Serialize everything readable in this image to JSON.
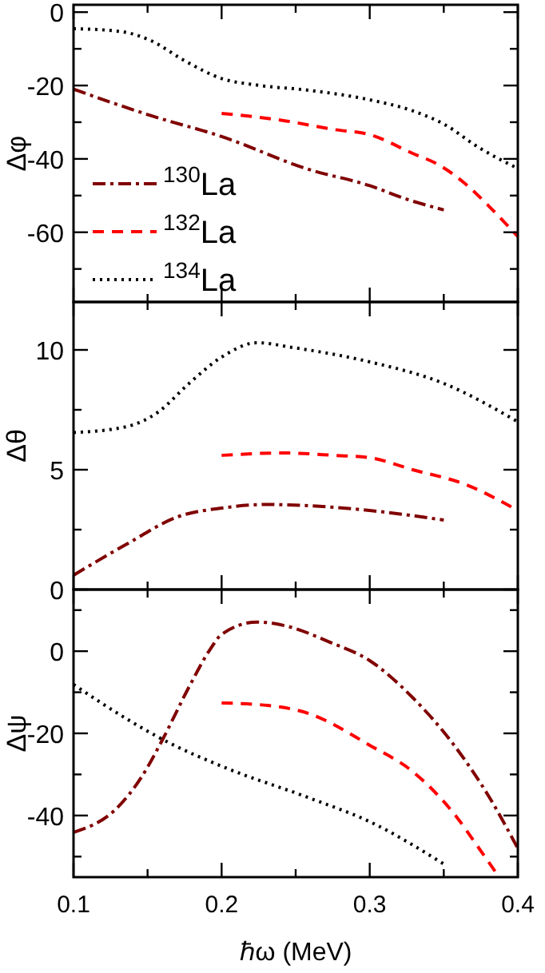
{
  "chart_data": [
    {
      "type": "line",
      "ylabel": "Δφ",
      "xlim": [
        0.1,
        0.4
      ],
      "xticks": [
        0.1,
        {
          "value": 0.15,
          "label": null
        },
        0.2,
        {
          "value": 0.25,
          "label": null
        },
        0.3,
        {
          "value": 0.35,
          "label": null
        },
        0.4
      ],
      "ylim": [
        -79,
        2
      ],
      "yticks": [
        {
          "value": -70,
          "label": null
        },
        -60,
        {
          "value": -50,
          "label": null
        },
        -40,
        {
          "value": -30,
          "label": null
        },
        -20,
        {
          "value": -10,
          "label": null
        },
        0
      ],
      "tick_labels": "y",
      "legend": "bottom left",
      "grid": false,
      "series": [
        {
          "name": "$^{130}$La",
          "color": "#800000",
          "line_style": "dashdot",
          "x": [
            0.1,
            0.153,
            0.2,
            0.259,
            0.3,
            0.325,
            0.35
          ],
          "values": [
            -21,
            -28.3,
            -33.9,
            -42.9,
            -47.3,
            -51,
            -53.9
          ]
        },
        {
          "name": "$^{132}$La",
          "color": "#ff0000",
          "line_style": "dashed",
          "x": [
            0.2,
            0.241,
            0.276,
            0.3,
            0.329,
            0.346,
            0.364,
            0.381,
            0.4
          ],
          "values": [
            -27.6,
            -29.5,
            -32,
            -33.4,
            -38.5,
            -41.5,
            -46.6,
            -53.1,
            -61.2
          ]
        },
        {
          "name": "$^{134}$La",
          "color": "#000000",
          "line_style": "dotted",
          "x": [
            0.1,
            0.132,
            0.153,
            0.174,
            0.2,
            0.224,
            0.259,
            0.3,
            0.329,
            0.35,
            0.374,
            0.4
          ],
          "values": [
            -4.5,
            -5.3,
            -7.9,
            -13,
            -18.1,
            -19.9,
            -21.3,
            -23.9,
            -26.9,
            -30.5,
            -37,
            -42.6
          ]
        }
      ]
    },
    {
      "type": "line",
      "ylabel": "Δθ",
      "xlim": [
        0.1,
        0.4
      ],
      "xticks": [
        0.1,
        {
          "value": 0.15,
          "label": null
        },
        0.2,
        {
          "value": 0.25,
          "label": null
        },
        0.3,
        {
          "value": 0.35,
          "label": null
        },
        0.4
      ],
      "ylim": [
        0,
        12
      ],
      "yticks": [
        0,
        {
          "value": 2.5,
          "label": null
        },
        5,
        {
          "value": 7.5,
          "label": null
        },
        10
      ],
      "tick_labels": "y",
      "grid": false,
      "series": [
        {
          "color": "#800000",
          "line_style": "dashdot",
          "x": [
            0.1,
            0.136,
            0.171,
            0.2,
            0.231,
            0.259,
            0.3,
            0.35
          ],
          "values": [
            0.6,
            1.9,
            3.05,
            3.4,
            3.55,
            3.5,
            3.3,
            2.9
          ]
        },
        {
          "color": "#ff0000",
          "line_style": "dashed",
          "x": [
            0.2,
            0.241,
            0.276,
            0.3,
            0.329,
            0.364,
            0.4
          ],
          "values": [
            5.6,
            5.7,
            5.6,
            5.5,
            5,
            4.4,
            3.3
          ]
        },
        {
          "color": "#000000",
          "line_style": "dotted",
          "x": [
            0.1,
            0.136,
            0.157,
            0.178,
            0.2,
            0.224,
            0.248,
            0.3,
            0.35,
            0.4
          ],
          "values": [
            6.55,
            6.8,
            7.4,
            8.6,
            9.7,
            10.3,
            10.1,
            9.5,
            8.6,
            7
          ]
        }
      ]
    },
    {
      "type": "line",
      "ylabel": "Δψ",
      "xlabel": "ℏω (MeV)",
      "xlim": [
        0.1,
        0.4
      ],
      "xticks": [
        0.1,
        {
          "value": 0.15,
          "label": null
        },
        0.2,
        {
          "value": 0.25,
          "label": null
        },
        0.3,
        {
          "value": 0.35,
          "label": null
        },
        0.4
      ],
      "ylim": [
        -55,
        15
      ],
      "yticks": [
        {
          "value": -50,
          "label": null
        },
        -40,
        {
          "value": -30,
          "label": null
        },
        -20,
        {
          "value": -10,
          "label": null
        },
        0,
        {
          "value": 10,
          "label": null
        }
      ],
      "grid": false,
      "series": [
        {
          "color": "#800000",
          "line_style": "dashdot",
          "x": [
            0.1,
            0.129,
            0.146,
            0.16,
            0.178,
            0.192,
            0.2,
            0.224,
            0.245,
            0.273,
            0.3,
            0.329,
            0.357,
            0.381,
            0.4
          ],
          "values": [
            -44.1,
            -38.3,
            -30.6,
            -21.6,
            -8.7,
            0.3,
            4.1,
            7.1,
            6,
            2.2,
            -2.3,
            -11.3,
            -22.9,
            -35.7,
            -48
          ]
        },
        {
          "color": "#ff0000",
          "line_style": "dashed",
          "x": [
            0.2,
            0.231,
            0.259,
            0.3,
            0.329,
            0.357,
            0.375,
            0.387
          ],
          "values": [
            -12.6,
            -13.2,
            -15.2,
            -22.9,
            -29.3,
            -39.6,
            -48.6,
            -54.8
          ]
        },
        {
          "color": "#000000",
          "line_style": "dotted",
          "x": [
            0.1,
            0.136,
            0.164,
            0.2,
            0.259,
            0.3,
            0.35
          ],
          "values": [
            -8.1,
            -16.5,
            -22.2,
            -28,
            -35.7,
            -41.5,
            -51.8
          ]
        }
      ]
    }
  ]
}
